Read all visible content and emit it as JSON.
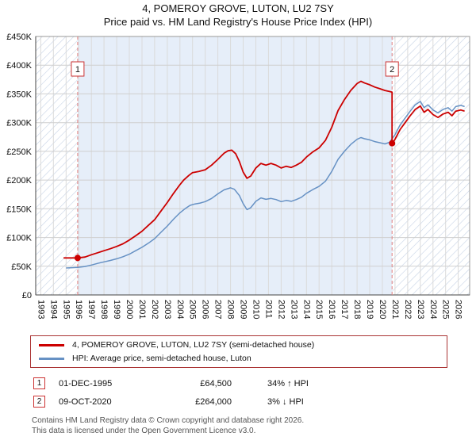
{
  "legend": [
    {
      "label": "4, POMEROY GROVE, LUTON, LU2 7SY (semi-detached house)",
      "color": "#cc0000"
    },
    {
      "label": "HPI: Average price, semi-detached house, Luton",
      "color": "#6691c4"
    }
  ],
  "sales": [
    {
      "num": "1",
      "date": "01-DEC-1995",
      "price": "£64,500",
      "hpi_note": "34% ↑ HPI",
      "year": 1995.92,
      "value": 64500
    },
    {
      "num": "2",
      "date": "09-OCT-2020",
      "price": "£264,000",
      "hpi_note": "3% ↓ HPI",
      "year": 2020.77,
      "value": 264000
    }
  ],
  "footer_line1": "Contains HM Land Registry data © Crown copyright and database right 2026.",
  "footer_line2": "This data is licensed under the Open Government Licence v3.0.",
  "chart_data": {
    "type": "line",
    "title": "4, POMEROY GROVE, LUTON, LU2 7SY",
    "subtitle": "Price paid vs. HM Land Registry's House Price Index (HPI)",
    "xlabel": "",
    "ylabel": "",
    "xlim": [
      1992.6,
      2026.9
    ],
    "ylim": [
      0,
      450000
    ],
    "grid": true,
    "legend_position": "bottom",
    "x_ticks": [
      1993,
      1994,
      1995,
      1996,
      1997,
      1998,
      1999,
      2000,
      2001,
      2002,
      2003,
      2004,
      2005,
      2006,
      2007,
      2008,
      2009,
      2010,
      2011,
      2012,
      2013,
      2014,
      2015,
      2016,
      2017,
      2018,
      2019,
      2020,
      2021,
      2022,
      2023,
      2024,
      2025,
      2026
    ],
    "y_ticks": [
      {
        "label": "£0",
        "value": 0
      },
      {
        "label": "£50K",
        "value": 50000
      },
      {
        "label": "£100K",
        "value": 100000
      },
      {
        "label": "£150K",
        "value": 150000
      },
      {
        "label": "£200K",
        "value": 200000
      },
      {
        "label": "£250K",
        "value": 250000
      },
      {
        "label": "£300K",
        "value": 300000
      },
      {
        "label": "£350K",
        "value": 350000
      },
      {
        "label": "£400K",
        "value": 400000
      },
      {
        "label": "£450K",
        "value": 450000
      }
    ],
    "colors": {
      "grid_h": "#cfcfcf",
      "grid_v": "#dadada",
      "hatch_line": "#c7d3e6",
      "owned_fill": "#e6eef9",
      "sale_line": "#e08080",
      "sale_dot": "#cc0000",
      "marker_border": "#cc3333"
    },
    "series": [
      {
        "name": "price-paid-indexed",
        "label": "4, POMEROY GROVE, LUTON, LU2 7SY (semi-detached house)",
        "color": "#cc0000",
        "width": 1.8,
        "points": [
          [
            1994.8,
            64500
          ],
          [
            1995.92,
            64500
          ],
          [
            1996.5,
            66000
          ],
          [
            1997.0,
            70000
          ],
          [
            1997.5,
            73500
          ],
          [
            1998.0,
            77000
          ],
          [
            1998.5,
            80500
          ],
          [
            1999.0,
            84500
          ],
          [
            1999.5,
            89000
          ],
          [
            2000.0,
            95500
          ],
          [
            2000.5,
            103000
          ],
          [
            2001.0,
            111000
          ],
          [
            2001.5,
            121000
          ],
          [
            2002.0,
            131000
          ],
          [
            2002.5,
            146000
          ],
          [
            2003.0,
            161000
          ],
          [
            2003.5,
            177000
          ],
          [
            2004.0,
            192000
          ],
          [
            2004.3,
            200000
          ],
          [
            2004.7,
            208000
          ],
          [
            2005.0,
            213000
          ],
          [
            2005.5,
            215000
          ],
          [
            2006.0,
            218000
          ],
          [
            2006.5,
            226000
          ],
          [
            2007.0,
            236000
          ],
          [
            2007.5,
            247000
          ],
          [
            2007.8,
            251000
          ],
          [
            2008.1,
            252000
          ],
          [
            2008.4,
            246000
          ],
          [
            2008.7,
            232000
          ],
          [
            2009.0,
            214000
          ],
          [
            2009.3,
            203000
          ],
          [
            2009.6,
            207000
          ],
          [
            2010.0,
            221000
          ],
          [
            2010.4,
            229000
          ],
          [
            2010.8,
            226000
          ],
          [
            2011.2,
            229000
          ],
          [
            2011.6,
            226000
          ],
          [
            2012.0,
            221000
          ],
          [
            2012.4,
            224000
          ],
          [
            2012.8,
            222000
          ],
          [
            2013.2,
            226000
          ],
          [
            2013.6,
            231000
          ],
          [
            2014.0,
            240000
          ],
          [
            2014.5,
            249000
          ],
          [
            2015.0,
            256000
          ],
          [
            2015.5,
            269000
          ],
          [
            2016.0,
            292000
          ],
          [
            2016.5,
            321000
          ],
          [
            2017.0,
            340000
          ],
          [
            2017.5,
            356000
          ],
          [
            2018.0,
            368000
          ],
          [
            2018.3,
            372000
          ],
          [
            2018.6,
            369000
          ],
          [
            2019.0,
            366000
          ],
          [
            2019.4,
            362000
          ],
          [
            2019.8,
            359000
          ],
          [
            2020.2,
            356000
          ],
          [
            2020.6,
            354000
          ],
          [
            2020.77,
            353000
          ],
          [
            2020.77,
            264000
          ],
          [
            2021.0,
            271000
          ],
          [
            2021.4,
            288000
          ],
          [
            2021.8,
            300000
          ],
          [
            2022.2,
            312000
          ],
          [
            2022.6,
            323000
          ],
          [
            2023.0,
            329000
          ],
          [
            2023.3,
            318000
          ],
          [
            2023.6,
            323000
          ],
          [
            2024.0,
            314000
          ],
          [
            2024.4,
            309000
          ],
          [
            2024.8,
            315000
          ],
          [
            2025.2,
            318000
          ],
          [
            2025.5,
            312000
          ],
          [
            2025.8,
            320000
          ],
          [
            2026.2,
            322000
          ],
          [
            2026.5,
            320000
          ]
        ]
      },
      {
        "name": "hpi-average",
        "label": "HPI: Average price, semi-detached house, Luton",
        "color": "#6691c4",
        "width": 1.5,
        "points": [
          [
            1995.0,
            47000
          ],
          [
            1995.5,
            47500
          ],
          [
            1995.92,
            48000
          ],
          [
            1996.5,
            49500
          ],
          [
            1997.0,
            52000
          ],
          [
            1997.5,
            55000
          ],
          [
            1998.0,
            57500
          ],
          [
            1998.5,
            60000
          ],
          [
            1999.0,
            63000
          ],
          [
            1999.5,
            66500
          ],
          [
            2000.0,
            71000
          ],
          [
            2000.5,
            77000
          ],
          [
            2001.0,
            83000
          ],
          [
            2001.5,
            90000
          ],
          [
            2002.0,
            98000
          ],
          [
            2002.5,
            109000
          ],
          [
            2003.0,
            120000
          ],
          [
            2003.5,
            132000
          ],
          [
            2004.0,
            143000
          ],
          [
            2004.4,
            150000
          ],
          [
            2004.8,
            156000
          ],
          [
            2005.2,
            158500
          ],
          [
            2005.6,
            160000
          ],
          [
            2006.0,
            162500
          ],
          [
            2006.5,
            168000
          ],
          [
            2007.0,
            176000
          ],
          [
            2007.5,
            183000
          ],
          [
            2008.0,
            186500
          ],
          [
            2008.3,
            184000
          ],
          [
            2008.7,
            173000
          ],
          [
            2009.0,
            159000
          ],
          [
            2009.3,
            148500
          ],
          [
            2009.6,
            152000
          ],
          [
            2010.0,
            163000
          ],
          [
            2010.4,
            169000
          ],
          [
            2010.8,
            166500
          ],
          [
            2011.2,
            168000
          ],
          [
            2011.6,
            166000
          ],
          [
            2012.0,
            162500
          ],
          [
            2012.4,
            164500
          ],
          [
            2012.8,
            163000
          ],
          [
            2013.2,
            166000
          ],
          [
            2013.6,
            170000
          ],
          [
            2014.0,
            177000
          ],
          [
            2014.5,
            183500
          ],
          [
            2015.0,
            189000
          ],
          [
            2015.5,
            198000
          ],
          [
            2016.0,
            215000
          ],
          [
            2016.5,
            236000
          ],
          [
            2017.0,
            250000
          ],
          [
            2017.5,
            262000
          ],
          [
            2018.0,
            271000
          ],
          [
            2018.3,
            274000
          ],
          [
            2018.6,
            272000
          ],
          [
            2019.0,
            270000
          ],
          [
            2019.4,
            267000
          ],
          [
            2019.8,
            265000
          ],
          [
            2020.2,
            263000
          ],
          [
            2020.6,
            266000
          ],
          [
            2020.77,
            272000
          ],
          [
            2021.0,
            279000
          ],
          [
            2021.4,
            296000
          ],
          [
            2021.8,
            308000
          ],
          [
            2022.2,
            320000
          ],
          [
            2022.6,
            331000
          ],
          [
            2023.0,
            337000
          ],
          [
            2023.3,
            326000
          ],
          [
            2023.6,
            331000
          ],
          [
            2024.0,
            322000
          ],
          [
            2024.4,
            317000
          ],
          [
            2024.8,
            323000
          ],
          [
            2025.2,
            326000
          ],
          [
            2025.5,
            320000
          ],
          [
            2025.8,
            328000
          ],
          [
            2026.2,
            330000
          ],
          [
            2026.5,
            328000
          ]
        ]
      }
    ]
  }
}
